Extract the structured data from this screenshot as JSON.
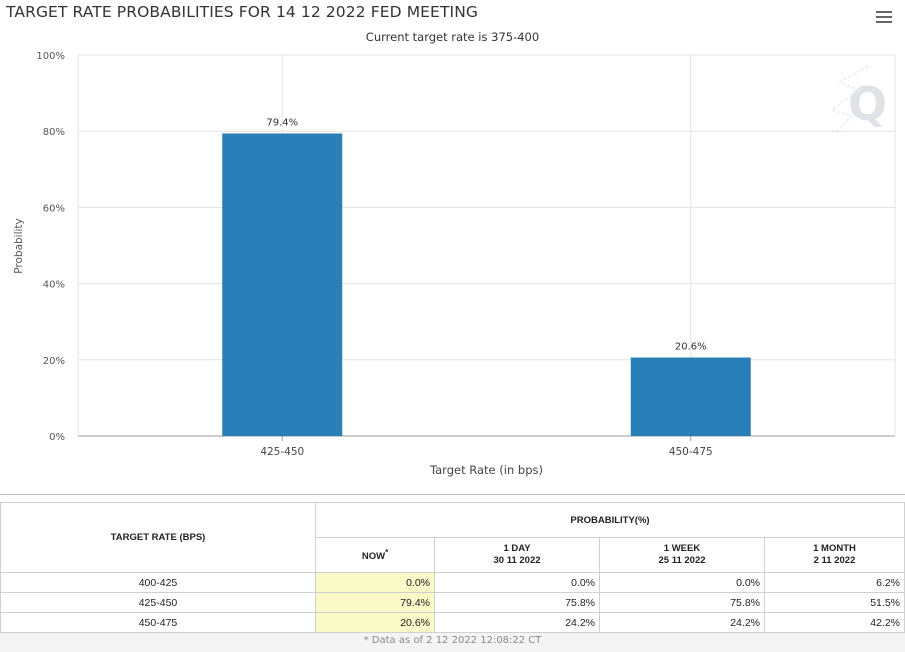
{
  "chart_data": {
    "type": "bar",
    "title": "TARGET RATE PROBABILITIES FOR 14 12 2022 FED MEETING",
    "subtitle": "Current target rate is 375-400",
    "xlabel": "Target Rate (in bps)",
    "ylabel": "Probability",
    "categories": [
      "425-450",
      "450-475"
    ],
    "values": [
      79.4,
      20.6
    ],
    "value_labels": [
      "79.4%",
      "20.6%"
    ],
    "y_ticks": [
      "0%",
      "20%",
      "40%",
      "60%",
      "80%",
      "100%"
    ],
    "ylim": [
      0,
      100
    ],
    "grid": true,
    "bar_color": "#2a7fb8"
  },
  "menu_icon": "hamburger-menu-icon",
  "watermark_icon": "q-logo-icon",
  "table": {
    "col_target": "TARGET RATE (BPS)",
    "col_probability": "PROBABILITY(%)",
    "sub_headers": [
      {
        "label": "NOW",
        "sup": "*",
        "date": ""
      },
      {
        "label": "1 DAY",
        "date": "30 11 2022"
      },
      {
        "label": "1 WEEK",
        "date": "25 11 2022"
      },
      {
        "label": "1 MONTH",
        "date": "2 11 2022"
      }
    ],
    "rows": [
      {
        "rate": "400-425",
        "now": "0.0%",
        "day": "0.0%",
        "week": "0.0%",
        "month": "6.2%"
      },
      {
        "rate": "425-450",
        "now": "79.4%",
        "day": "75.8%",
        "week": "75.8%",
        "month": "51.5%"
      },
      {
        "rate": "450-475",
        "now": "20.6%",
        "day": "24.2%",
        "week": "24.2%",
        "month": "42.2%"
      }
    ],
    "footnote": "* Data as of 2 12 2022 12:08:22 CT"
  }
}
